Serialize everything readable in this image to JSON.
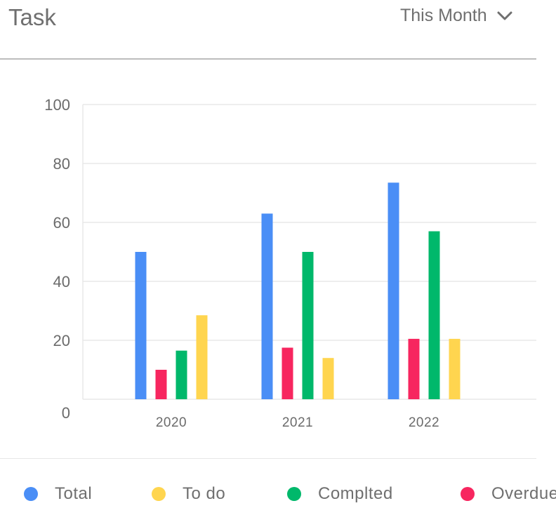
{
  "header": {
    "title": "Task",
    "period_label": "This Month"
  },
  "colors": {
    "total": "#4a8ef6",
    "todo": "#ffd54f",
    "completed": "#00b86b",
    "overdue": "#f7265f",
    "grid": "#e8e8e8",
    "axis_text": "#6b6b6b"
  },
  "chart_data": {
    "type": "bar",
    "categories": [
      "2020",
      "2021",
      "2022"
    ],
    "series": [
      {
        "name": "Total",
        "color": "#4a8ef6",
        "values": [
          50,
          63,
          73.5
        ]
      },
      {
        "name": "Overdue",
        "color": "#f7265f",
        "values": [
          10,
          17.5,
          20.5
        ]
      },
      {
        "name": "Complted",
        "color": "#00b86b",
        "values": [
          16.5,
          50,
          57
        ]
      },
      {
        "name": "To do",
        "color": "#ffd54f",
        "values": [
          28.5,
          14,
          20.5
        ]
      }
    ],
    "ylim": [
      0,
      100
    ],
    "yticks": [
      "0",
      "20",
      "40",
      "60",
      "80",
      "100"
    ],
    "grid": true,
    "legend_position": "bottom"
  },
  "legend": [
    {
      "label": "Total",
      "color": "#4a8ef6"
    },
    {
      "label": "To do",
      "color": "#ffd54f"
    },
    {
      "label": "Complted",
      "color": "#00b86b"
    },
    {
      "label": "Overdue",
      "color": "#f7265f"
    }
  ]
}
